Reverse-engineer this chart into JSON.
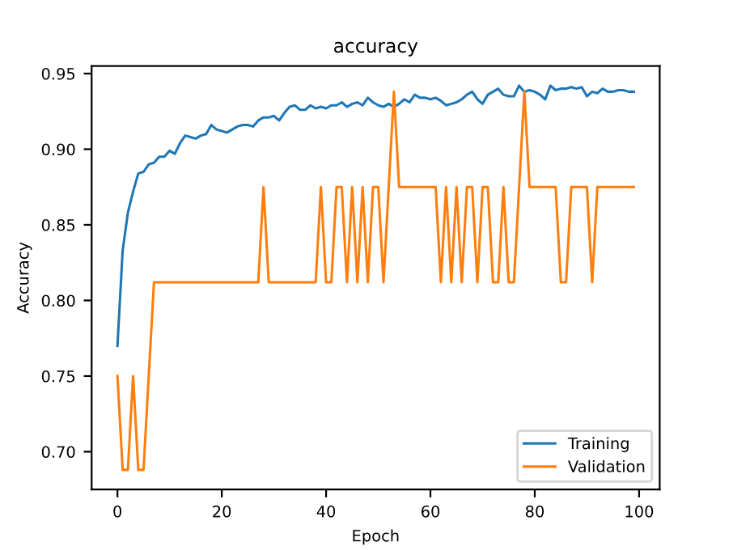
{
  "chart_data": {
    "type": "line",
    "title": "accuracy",
    "xlabel": "Epoch",
    "ylabel": "Accuracy",
    "x": [
      0,
      1,
      2,
      3,
      4,
      5,
      6,
      7,
      8,
      9,
      10,
      11,
      12,
      13,
      14,
      15,
      16,
      17,
      18,
      19,
      20,
      21,
      22,
      23,
      24,
      25,
      26,
      27,
      28,
      29,
      30,
      31,
      32,
      33,
      34,
      35,
      36,
      37,
      38,
      39,
      40,
      41,
      42,
      43,
      44,
      45,
      46,
      47,
      48,
      49,
      50,
      51,
      52,
      53,
      54,
      55,
      56,
      57,
      58,
      59,
      60,
      61,
      62,
      63,
      64,
      65,
      66,
      67,
      68,
      69,
      70,
      71,
      72,
      73,
      74,
      75,
      76,
      77,
      78,
      79,
      80,
      81,
      82,
      83,
      84,
      85,
      86,
      87,
      88,
      89,
      90,
      91,
      92,
      93,
      94,
      95,
      96,
      97,
      98,
      99
    ],
    "series": [
      {
        "name": "Training",
        "color": "#1f77b4",
        "values": [
          0.77,
          0.833,
          0.858,
          0.872,
          0.884,
          0.885,
          0.89,
          0.891,
          0.895,
          0.895,
          0.899,
          0.897,
          0.904,
          0.909,
          0.908,
          0.907,
          0.909,
          0.91,
          0.916,
          0.913,
          0.912,
          0.911,
          0.913,
          0.915,
          0.916,
          0.916,
          0.915,
          0.919,
          0.921,
          0.921,
          0.922,
          0.919,
          0.924,
          0.928,
          0.929,
          0.926,
          0.926,
          0.929,
          0.927,
          0.928,
          0.927,
          0.929,
          0.929,
          0.931,
          0.928,
          0.93,
          0.931,
          0.929,
          0.934,
          0.931,
          0.929,
          0.928,
          0.93,
          0.928,
          0.93,
          0.933,
          0.931,
          0.936,
          0.934,
          0.934,
          0.933,
          0.934,
          0.932,
          0.929,
          0.93,
          0.931,
          0.933,
          0.936,
          0.938,
          0.933,
          0.93,
          0.936,
          0.938,
          0.94,
          0.936,
          0.935,
          0.935,
          0.942,
          0.938,
          0.939,
          0.938,
          0.936,
          0.933,
          0.942,
          0.939,
          0.94,
          0.94,
          0.941,
          0.94,
          0.941,
          0.935,
          0.938,
          0.937,
          0.94,
          0.938,
          0.938,
          0.939,
          0.939,
          0.938,
          0.938
        ]
      },
      {
        "name": "Validation",
        "color": "#ff7f0e",
        "values": [
          0.75,
          0.688,
          0.688,
          0.75,
          0.688,
          0.688,
          0.75,
          0.812,
          0.812,
          0.812,
          0.812,
          0.812,
          0.812,
          0.812,
          0.812,
          0.812,
          0.812,
          0.812,
          0.812,
          0.812,
          0.812,
          0.812,
          0.812,
          0.812,
          0.812,
          0.812,
          0.812,
          0.812,
          0.875,
          0.812,
          0.812,
          0.812,
          0.812,
          0.812,
          0.812,
          0.812,
          0.812,
          0.812,
          0.812,
          0.875,
          0.812,
          0.812,
          0.875,
          0.875,
          0.812,
          0.875,
          0.812,
          0.875,
          0.812,
          0.875,
          0.875,
          0.812,
          0.875,
          0.938,
          0.875,
          0.875,
          0.875,
          0.875,
          0.875,
          0.875,
          0.875,
          0.875,
          0.812,
          0.875,
          0.812,
          0.875,
          0.812,
          0.875,
          0.875,
          0.812,
          0.875,
          0.875,
          0.812,
          0.812,
          0.875,
          0.812,
          0.812,
          0.875,
          0.938,
          0.875,
          0.875,
          0.875,
          0.875,
          0.875,
          0.875,
          0.812,
          0.812,
          0.875,
          0.875,
          0.875,
          0.875,
          0.812,
          0.875,
          0.875,
          0.875,
          0.875,
          0.875,
          0.875,
          0.875,
          0.875
        ]
      }
    ],
    "xlim": [
      -4.95,
      103.95
    ],
    "ylim": [
      0.675,
      0.955
    ],
    "xticks": [
      0,
      20,
      40,
      60,
      80,
      100
    ],
    "yticks": [
      {
        "value": 0.7,
        "label": "0.70"
      },
      {
        "value": 0.75,
        "label": "0.75"
      },
      {
        "value": 0.8,
        "label": "0.80"
      },
      {
        "value": 0.85,
        "label": "0.85"
      },
      {
        "value": 0.9,
        "label": "0.90"
      },
      {
        "value": 0.95,
        "label": "0.95"
      }
    ],
    "legend": "lower right",
    "grid": false
  }
}
